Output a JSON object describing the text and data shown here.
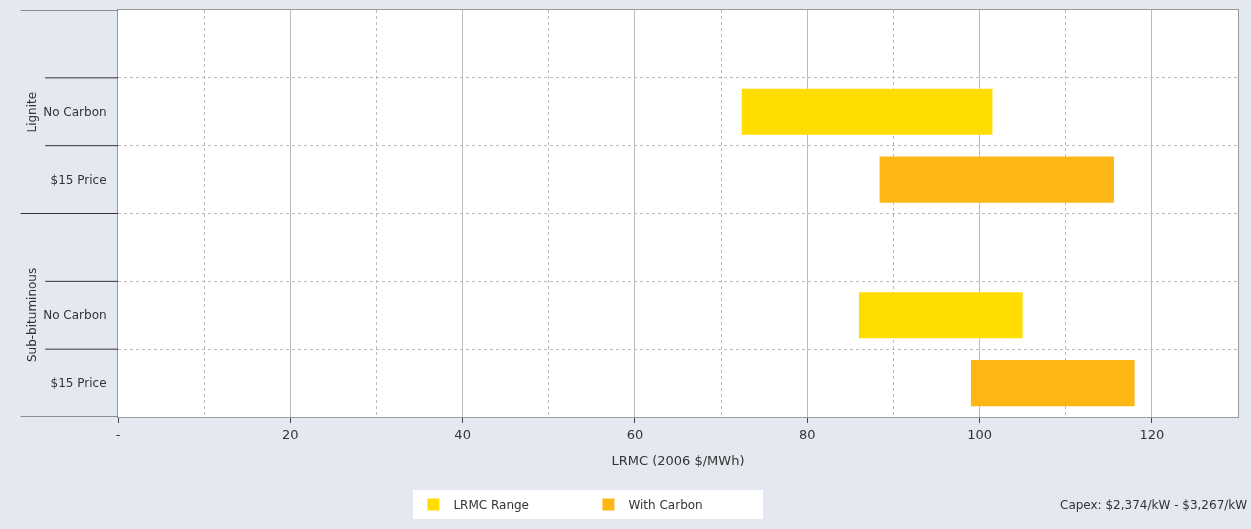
{
  "chart_data": {
    "type": "bar",
    "orientation": "horizontal",
    "categories": [
      null,
      "No Carbon",
      "$15 Price",
      null,
      "No Carbon",
      "$15 Price"
    ],
    "series": [
      {
        "name": "LRMC Range",
        "color": "#ffdd00",
        "values": [
          null,
          29.1,
          null,
          null,
          19.0,
          null
        ],
        "base": [
          null,
          72.4,
          null,
          null,
          86.0,
          null
        ]
      },
      {
        "name": "With Carbon",
        "color": "#fcb714",
        "values": [
          null,
          null,
          27.2,
          null,
          null,
          19.0
        ],
        "base": [
          null,
          null,
          88.4,
          null,
          null,
          99.0
        ]
      }
    ],
    "xlabel": "LRMC (2006 $/MWh)",
    "xlim": [
      0,
      130
    ],
    "xticks": [
      {
        "value": 0,
        "label": "-"
      },
      20,
      40,
      60,
      80,
      100,
      120
    ],
    "grid": true,
    "legend": "bottom",
    "annotations": [
      "Lignite",
      "Sub-bituminous",
      "Capex: $2,374/kW - $3,267/kW"
    ]
  }
}
